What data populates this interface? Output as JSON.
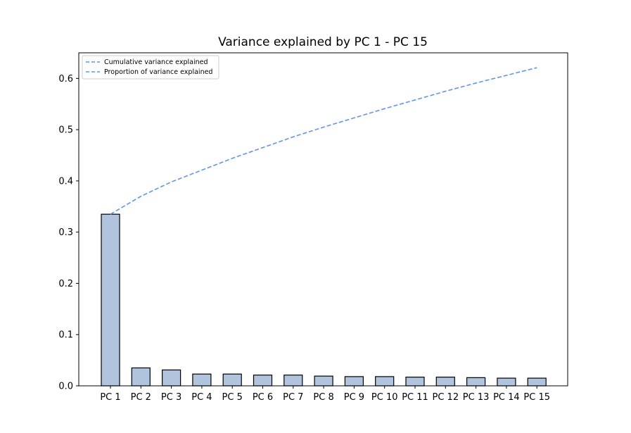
{
  "chart_data": {
    "type": "bar",
    "title": "Variance explained by PC 1 - PC 15",
    "xlabel": "",
    "ylabel": "",
    "categories": [
      "PC 1",
      "PC 2",
      "PC 3",
      "PC 4",
      "PC 5",
      "PC 6",
      "PC 7",
      "PC 8",
      "PC 9",
      "PC 10",
      "PC 11",
      "PC 12",
      "PC 13",
      "PC 14",
      "PC 15"
    ],
    "ylim": [
      0,
      0.65
    ],
    "yticks": [
      0.0,
      0.1,
      0.2,
      0.3,
      0.4,
      0.5,
      0.6
    ],
    "ytick_labels": [
      "0.0",
      "0.1",
      "0.2",
      "0.3",
      "0.4",
      "0.5",
      "0.6"
    ],
    "series": [
      {
        "name": "Proportion of variance explained",
        "kind": "bar",
        "values": [
          0.335,
          0.035,
          0.031,
          0.023,
          0.023,
          0.021,
          0.021,
          0.019,
          0.018,
          0.018,
          0.017,
          0.017,
          0.016,
          0.015,
          0.015
        ]
      },
      {
        "name": "Cumulative variance explained",
        "kind": "line",
        "values": [
          0.335,
          0.37,
          0.398,
          0.421,
          0.444,
          0.465,
          0.486,
          0.505,
          0.523,
          0.541,
          0.558,
          0.575,
          0.591,
          0.606,
          0.621
        ]
      }
    ],
    "legend": {
      "position": "top-left",
      "entries": [
        "Cumulative variance explained",
        "Proportion of variance explained"
      ]
    },
    "colors": {
      "bar_fill": "#b0c4de",
      "bar_edge": "#000000",
      "line": "#6495ed",
      "axis": "#000000"
    },
    "grid": false
  }
}
